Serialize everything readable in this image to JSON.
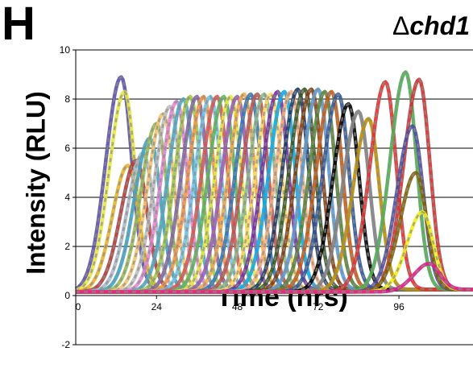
{
  "panel_label": "H",
  "title_delta": "Δ",
  "title_gene": "chd1",
  "chart_data": {
    "type": "line",
    "title": "Δchd1",
    "xlabel": "Time (hrs)",
    "ylabel": "Intensity (RLU)",
    "xlim": [
      0,
      118
    ],
    "ylim": [
      -2,
      10
    ],
    "xticks": [
      0,
      24,
      48,
      72,
      96
    ],
    "xtick_labels": [
      "0",
      "24",
      "48",
      "72",
      "96"
    ],
    "yticks": [
      -2,
      0,
      2,
      4,
      6,
      8,
      10
    ],
    "ytick_labels": [
      "-2",
      "0",
      "2",
      "4",
      "6",
      "8",
      "10"
    ],
    "grid": "horizontal",
    "legend": "none",
    "series_peaks": [
      {
        "peak_x": 13.5,
        "peak_y": 8.9,
        "color": "#5b4fa8"
      },
      {
        "peak_x": 14.5,
        "peak_y": 8.3,
        "color": "#e6e845"
      },
      {
        "peak_x": 15.5,
        "peak_y": 5.3,
        "color": "#e6b52e"
      },
      {
        "peak_x": 18,
        "peak_y": 5.5,
        "color": "#b03a3a"
      },
      {
        "peak_x": 20,
        "peak_y": 5.8,
        "color": "#aeb9c9"
      },
      {
        "peak_x": 22,
        "peak_y": 6.4,
        "color": "#3aa6c9"
      },
      {
        "peak_x": 24,
        "peak_y": 7.0,
        "color": "#9bbb59"
      },
      {
        "peak_x": 26,
        "peak_y": 7.4,
        "color": "#f2c572"
      },
      {
        "peak_x": 28,
        "peak_y": 7.7,
        "color": "#c0c0c0"
      },
      {
        "peak_x": 30,
        "peak_y": 7.9,
        "color": "#e58ad0"
      },
      {
        "peak_x": 32,
        "peak_y": 8.0,
        "color": "#4bacc6"
      },
      {
        "peak_x": 34,
        "peak_y": 8.1,
        "color": "#a4c84a"
      },
      {
        "peak_x": 36,
        "peak_y": 8.1,
        "color": "#8064a2"
      },
      {
        "peak_x": 38,
        "peak_y": 8.1,
        "color": "#f79646"
      },
      {
        "peak_x": 40,
        "peak_y": 8.1,
        "color": "#76c5e8"
      },
      {
        "peak_x": 42,
        "peak_y": 8.1,
        "color": "#d9534f"
      },
      {
        "peak_x": 44,
        "peak_y": 8.1,
        "color": "#5cb85c"
      },
      {
        "peak_x": 46,
        "peak_y": 8.1,
        "color": "#e6e845"
      },
      {
        "peak_x": 48,
        "peak_y": 8.1,
        "color": "#9b59b6"
      },
      {
        "peak_x": 50,
        "peak_y": 8.2,
        "color": "#f0ad4e"
      },
      {
        "peak_x": 52,
        "peak_y": 8.2,
        "color": "#2e75b6"
      },
      {
        "peak_x": 54,
        "peak_y": 8.2,
        "color": "#c0504d"
      },
      {
        "peak_x": 56,
        "peak_y": 8.2,
        "color": "#8fbc8f"
      },
      {
        "peak_x": 58,
        "peak_y": 8.2,
        "color": "#ffd966"
      },
      {
        "peak_x": 60,
        "peak_y": 8.3,
        "color": "#7030a0"
      },
      {
        "peak_x": 62,
        "peak_y": 8.3,
        "color": "#00b0f0"
      },
      {
        "peak_x": 64,
        "peak_y": 8.3,
        "color": "#f4b183"
      },
      {
        "peak_x": 66,
        "peak_y": 8.4,
        "color": "#1f3864"
      },
      {
        "peak_x": 68,
        "peak_y": 8.4,
        "color": "#375623"
      },
      {
        "peak_x": 70,
        "peak_y": 8.4,
        "color": "#843c0c"
      },
      {
        "peak_x": 72,
        "peak_y": 8.4,
        "color": "#5b9bd5"
      },
      {
        "peak_x": 74,
        "peak_y": 8.3,
        "color": "#548235"
      },
      {
        "peak_x": 76,
        "peak_y": 8.3,
        "color": "#c55a11"
      },
      {
        "peak_x": 78,
        "peak_y": 8.2,
        "color": "#2f5597"
      },
      {
        "peak_x": 81,
        "peak_y": 7.8,
        "color": "#000000"
      },
      {
        "peak_x": 84,
        "peak_y": 7.5,
        "color": "#7f7f7f"
      },
      {
        "peak_x": 87,
        "peak_y": 7.2,
        "color": "#bf9000"
      },
      {
        "peak_x": 92,
        "peak_y": 8.7,
        "color": "#e03030"
      },
      {
        "peak_x": 98,
        "peak_y": 9.1,
        "color": "#4caf50"
      },
      {
        "peak_x": 102,
        "peak_y": 8.8,
        "color": "#d03030"
      },
      {
        "peak_x": 100,
        "peak_y": 6.9,
        "color": "#4b4ba0"
      },
      {
        "peak_x": 101,
        "peak_y": 5.0,
        "color": "#7f6000"
      },
      {
        "peak_x": 103,
        "peak_y": 3.4,
        "color": "#f0f020"
      },
      {
        "peak_x": 105,
        "peak_y": 1.3,
        "color": "#e0198a"
      }
    ]
  }
}
